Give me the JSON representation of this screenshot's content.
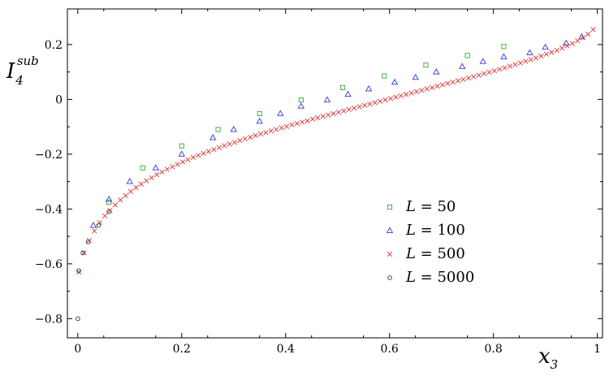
{
  "chart_data": {
    "type": "scatter",
    "xlabel": "x",
    "xlabel_sub": "3",
    "ylabel": "I",
    "ylabel_sub": "4",
    "ylabel_sup": "sub",
    "xlim": [
      -0.02,
      1.01
    ],
    "ylim": [
      -0.87,
      0.33
    ],
    "xticks": [
      0,
      0.2,
      0.4,
      0.6,
      0.8,
      1
    ],
    "xtick_labels": [
      "0",
      "0.2",
      "0.4",
      "0.6",
      "0.8",
      "1"
    ],
    "yticks": [
      -0.8,
      -0.6,
      -0.4,
      -0.2,
      0,
      0.2
    ],
    "ytick_labels": [
      "−0.8",
      "−0.6",
      "−0.4",
      "−0.2",
      "0",
      "0.2"
    ],
    "grid": false,
    "legend_position": "lower-right",
    "series": [
      {
        "name": "L = 50",
        "legend_var": "L",
        "legend_val": "50",
        "marker": "square",
        "color": "#33aa33",
        "x": [
          0.06,
          0.125,
          0.2,
          0.27,
          0.35,
          0.43,
          0.51,
          0.59,
          0.67,
          0.75,
          0.82
        ],
        "y": [
          -0.375,
          -0.25,
          -0.17,
          -0.11,
          -0.052,
          -0.002,
          0.043,
          0.085,
          0.125,
          0.16,
          0.193
        ]
      },
      {
        "name": "L = 100",
        "legend_var": "L",
        "legend_val": "100",
        "marker": "triangle",
        "color": "#3333dd",
        "x": [
          0.03,
          0.06,
          0.1,
          0.15,
          0.2,
          0.26,
          0.3,
          0.35,
          0.39,
          0.43,
          0.48,
          0.52,
          0.56,
          0.61,
          0.65,
          0.69,
          0.74,
          0.78,
          0.82,
          0.87,
          0.9,
          0.94,
          0.97
        ],
        "y": [
          -0.46,
          -0.365,
          -0.3,
          -0.25,
          -0.2,
          -0.14,
          -0.11,
          -0.08,
          -0.052,
          -0.025,
          -0.002,
          0.018,
          0.038,
          0.062,
          0.08,
          0.1,
          0.12,
          0.138,
          0.155,
          0.17,
          0.19,
          0.205,
          0.228
        ]
      },
      {
        "name": "L = 500",
        "legend_var": "L",
        "legend_val": "500",
        "marker": "cross",
        "color": "#dd3333",
        "x": [
          0.002,
          0.012,
          0.022,
          0.032,
          0.042,
          0.052,
          0.062,
          0.072,
          0.082,
          0.092,
          0.102,
          0.112,
          0.122,
          0.132,
          0.142,
          0.152,
          0.162,
          0.172,
          0.182,
          0.192,
          0.202,
          0.212,
          0.222,
          0.232,
          0.242,
          0.252,
          0.262,
          0.272,
          0.282,
          0.292,
          0.302,
          0.312,
          0.322,
          0.332,
          0.342,
          0.352,
          0.362,
          0.372,
          0.382,
          0.392,
          0.402,
          0.412,
          0.422,
          0.432,
          0.442,
          0.452,
          0.462,
          0.472,
          0.482,
          0.492,
          0.502,
          0.512,
          0.522,
          0.532,
          0.542,
          0.552,
          0.562,
          0.572,
          0.582,
          0.592,
          0.602,
          0.612,
          0.622,
          0.632,
          0.642,
          0.652,
          0.662,
          0.672,
          0.682,
          0.692,
          0.702,
          0.712,
          0.722,
          0.732,
          0.742,
          0.752,
          0.762,
          0.772,
          0.782,
          0.792,
          0.802,
          0.812,
          0.822,
          0.832,
          0.842,
          0.852,
          0.862,
          0.872,
          0.882,
          0.892,
          0.902,
          0.912,
          0.922,
          0.932,
          0.942,
          0.952,
          0.962,
          0.972,
          0.982,
          0.992
        ],
        "y": [
          -0.63,
          -0.56,
          -0.515,
          -0.48,
          -0.45,
          -0.425,
          -0.405,
          -0.385,
          -0.367,
          -0.351,
          -0.336,
          -0.322,
          -0.309,
          -0.297,
          -0.286,
          -0.275,
          -0.265,
          -0.255,
          -0.246,
          -0.237,
          -0.228,
          -0.22,
          -0.212,
          -0.204,
          -0.197,
          -0.19,
          -0.183,
          -0.176,
          -0.169,
          -0.163,
          -0.157,
          -0.15,
          -0.144,
          -0.138,
          -0.132,
          -0.126,
          -0.121,
          -0.115,
          -0.11,
          -0.104,
          -0.099,
          -0.093,
          -0.088,
          -0.083,
          -0.078,
          -0.072,
          -0.067,
          -0.062,
          -0.057,
          -0.052,
          -0.047,
          -0.042,
          -0.037,
          -0.032,
          -0.027,
          -0.022,
          -0.017,
          -0.012,
          -0.007,
          -0.002,
          0.003,
          0.008,
          0.013,
          0.018,
          0.023,
          0.028,
          0.033,
          0.038,
          0.043,
          0.048,
          0.053,
          0.058,
          0.063,
          0.068,
          0.073,
          0.078,
          0.083,
          0.088,
          0.094,
          0.099,
          0.104,
          0.11,
          0.115,
          0.121,
          0.127,
          0.133,
          0.139,
          0.145,
          0.151,
          0.158,
          0.165,
          0.172,
          0.179,
          0.187,
          0.195,
          0.204,
          0.214,
          0.225,
          0.238,
          0.255
        ]
      },
      {
        "name": "L = 5000",
        "legend_var": "L",
        "legend_val": "5000",
        "marker": "circle",
        "color": "#333333",
        "x": [
          0.0002,
          0.002,
          0.01,
          0.02,
          0.04,
          0.06
        ],
        "y": [
          -0.8,
          -0.625,
          -0.56,
          -0.52,
          -0.46,
          -0.41
        ]
      }
    ]
  }
}
